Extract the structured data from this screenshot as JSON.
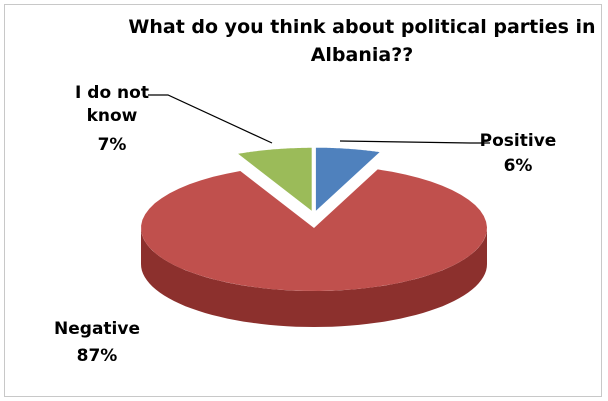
{
  "chart_data": {
    "type": "pie",
    "title": "What do you think about political parties in Albania??",
    "title_lines": [
      "What do you think about political parties in",
      "Albania??"
    ],
    "slices": [
      {
        "label": "Positive",
        "label_lines": [
          "Positive"
        ],
        "value": 6,
        "percent_label": "6%",
        "color": "#4f81bd",
        "side_color": "#2c5a8f",
        "exploded": true
      },
      {
        "label": "Negative",
        "label_lines": [
          "Negative"
        ],
        "value": 87,
        "percent_label": "87%",
        "color": "#c0504d",
        "side_color": "#8c302d",
        "exploded": false
      },
      {
        "label": "I do not know",
        "label_lines": [
          "I do not",
          "know"
        ],
        "value": 7,
        "percent_label": "7%",
        "color": "#9bbb59",
        "side_color": "#4f6228",
        "exploded": true
      }
    ],
    "legend": "none",
    "style": "3d"
  }
}
